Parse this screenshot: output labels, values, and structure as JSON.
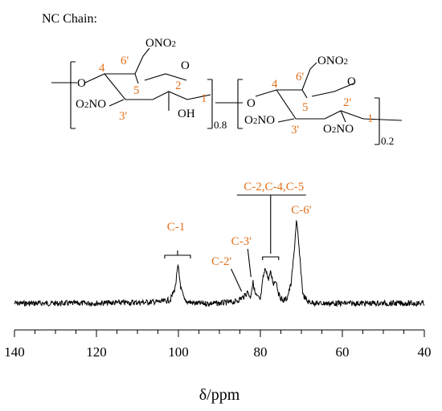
{
  "header": {
    "chain_label": "NC   Chain:"
  },
  "structure": {
    "unit1": {
      "groups": {
        "top": "ONO2",
        "left": "O2NO",
        "ring_o": "O",
        "hydroxyl": "OH",
        "link_o": "O"
      },
      "positions": [
        "4",
        "6'",
        "5",
        "2",
        "1",
        "3'"
      ],
      "subscript": "0.8"
    },
    "unit2": {
      "groups": {
        "top": "ONO2",
        "left": "O2NO",
        "ring_o": "O",
        "right": "O2NO",
        "link_o": "O"
      },
      "positions": [
        "4",
        "6'",
        "5",
        "2'",
        "1",
        "3'"
      ],
      "subscript": "0.2"
    }
  },
  "chart_data": {
    "type": "line",
    "title": "",
    "xlabel": "δ/ppm",
    "ylabel": "",
    "xlim": [
      140,
      40
    ],
    "x_reversed": true,
    "xticks": [
      "140",
      "120",
      "100",
      "80",
      "60",
      "40"
    ],
    "grid": false,
    "series": [
      {
        "points": [
          [
            140,
            0.02
          ],
          [
            125,
            0.02
          ],
          [
            110,
            0.03
          ],
          [
            104,
            0.04
          ],
          [
            102,
            0.06
          ],
          [
            100.8,
            0.2
          ],
          [
            100.1,
            0.46
          ],
          [
            99.4,
            0.2
          ],
          [
            98.5,
            0.05
          ],
          [
            96,
            0.02
          ],
          [
            90,
            0.02
          ],
          [
            86,
            0.04
          ],
          [
            84,
            0.1
          ],
          [
            83,
            0.16
          ],
          [
            82.5,
            0.08
          ],
          [
            81.8,
            0.27
          ],
          [
            81.2,
            0.12
          ],
          [
            80,
            0.06
          ],
          [
            79.3,
            0.33
          ],
          [
            78.7,
            0.44
          ],
          [
            78.1,
            0.3
          ],
          [
            77.5,
            0.38
          ],
          [
            76.8,
            0.25
          ],
          [
            76.2,
            0.3
          ],
          [
            75.5,
            0.12
          ],
          [
            74.5,
            0.05
          ],
          [
            73.5,
            0.08
          ],
          [
            72.5,
            0.25
          ],
          [
            71.8,
            0.6
          ],
          [
            71.2,
            1.0
          ],
          [
            70.8,
            0.8
          ],
          [
            70.2,
            0.45
          ],
          [
            69.6,
            0.12
          ],
          [
            68.5,
            0.04
          ],
          [
            66,
            0.02
          ],
          [
            60,
            0.02
          ],
          [
            50,
            0.02
          ],
          [
            40,
            0.02
          ]
        ]
      }
    ],
    "annotations": [
      {
        "text": "C-1",
        "x": 100.2
      },
      {
        "text": "C-2'",
        "x": 84.0
      },
      {
        "text": "C-3'",
        "x": 82.3
      },
      {
        "text": "C-2,C-4,C-5",
        "x": 77.5
      },
      {
        "text": "C-6'",
        "x": 71.2
      }
    ]
  }
}
